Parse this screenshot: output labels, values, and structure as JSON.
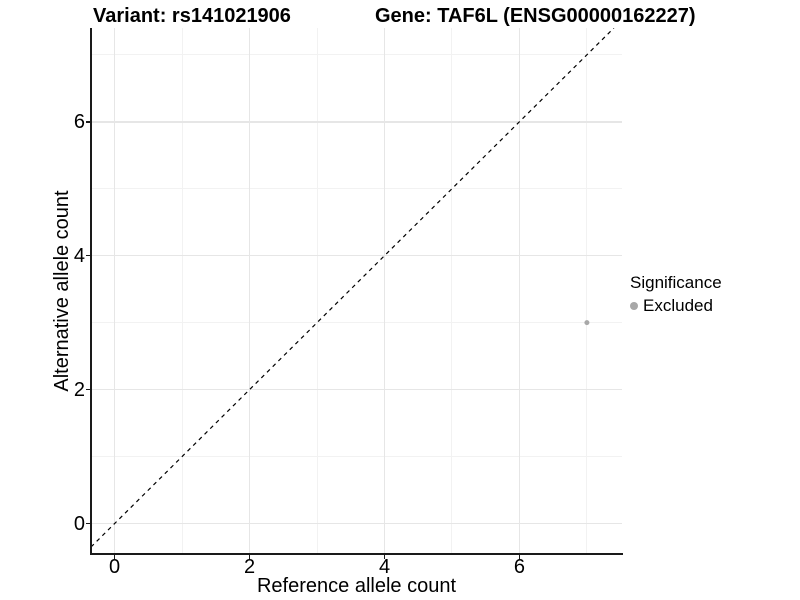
{
  "figure": {
    "title_left": "Variant: rs141021906",
    "title_right": "Gene: TAF6L (ENSG00000162227)"
  },
  "chart_data": {
    "type": "scatter",
    "title": "Variant: rs141021906   Gene: TAF6L (ENSG00000162227)",
    "xlabel": "Reference allele count",
    "ylabel": "Alternative allele count",
    "xlim": [
      -0.35,
      7.52
    ],
    "ylim": [
      -0.44,
      7.4
    ],
    "x_ticks": [
      0,
      2,
      4,
      6
    ],
    "y_ticks": [
      0,
      2,
      4,
      6
    ],
    "x_minor_ticks": [
      1,
      3,
      5,
      7
    ],
    "y_minor_ticks": [
      1,
      3,
      5,
      7
    ],
    "grid": true,
    "reference_line": {
      "kind": "identity",
      "style": "dashed",
      "color": "#000000"
    },
    "series": [
      {
        "name": "Excluded",
        "marker_color": "#a8a8a8",
        "marker_size_px": 5,
        "points": [
          {
            "x": 7,
            "y": 3
          }
        ]
      }
    ],
    "legend": {
      "title": "Significance",
      "position": "right",
      "entries": [
        {
          "label": "Excluded",
          "marker_color": "#a8a8a8"
        }
      ]
    }
  },
  "colors": {
    "background": "#ffffff",
    "axis_line": "#1a1a1a",
    "major_grid": "#e6e6e6",
    "minor_grid": "#f2f2f2",
    "text": "#000000",
    "point": "#a8a8a8"
  }
}
